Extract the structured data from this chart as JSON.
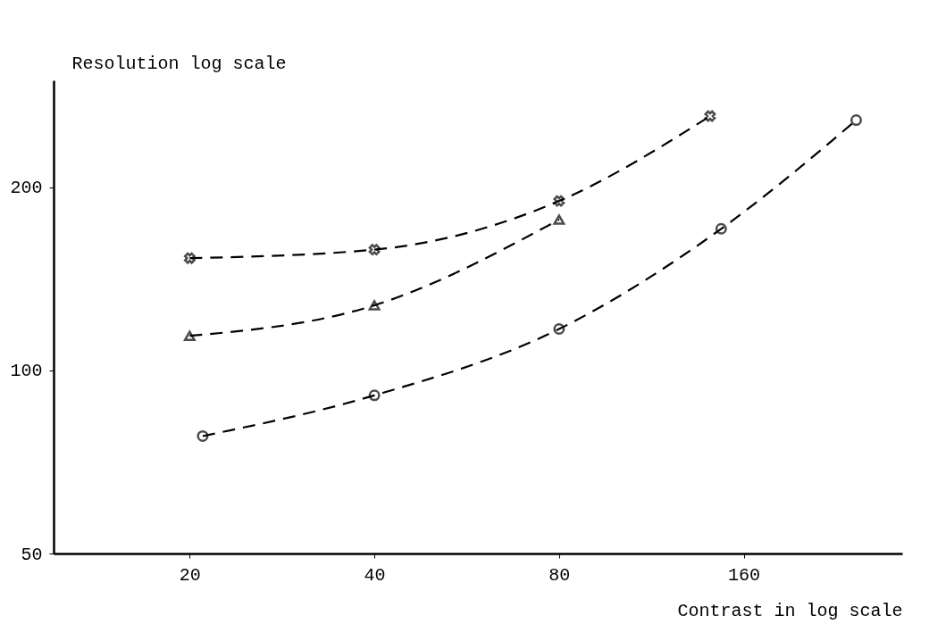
{
  "chart_data": {
    "type": "line",
    "xlabel": "Contrast in log scale",
    "ylabel": "Resolution log scale",
    "log": "xy",
    "grid": false,
    "line_style": "dashed",
    "xlim": [
      12,
      290
    ],
    "ylim": [
      50,
      300
    ],
    "xticks": [
      20,
      40,
      80,
      160
    ],
    "yticks": [
      50,
      100,
      200
    ],
    "series": [
      {
        "color": "#000000",
        "marker": "cross",
        "x": [
          20,
          40,
          80,
          141
        ],
        "values": [
          153,
          158,
          190,
          262
        ]
      },
      {
        "color": "#000000",
        "marker": "triangle",
        "x": [
          20,
          40,
          80
        ],
        "values": [
          114,
          128,
          177
        ]
      },
      {
        "color": "#000000",
        "marker": "circle",
        "x": [
          21,
          40,
          80,
          147,
          244
        ],
        "values": [
          78,
          91,
          117,
          171,
          258
        ]
      }
    ]
  }
}
